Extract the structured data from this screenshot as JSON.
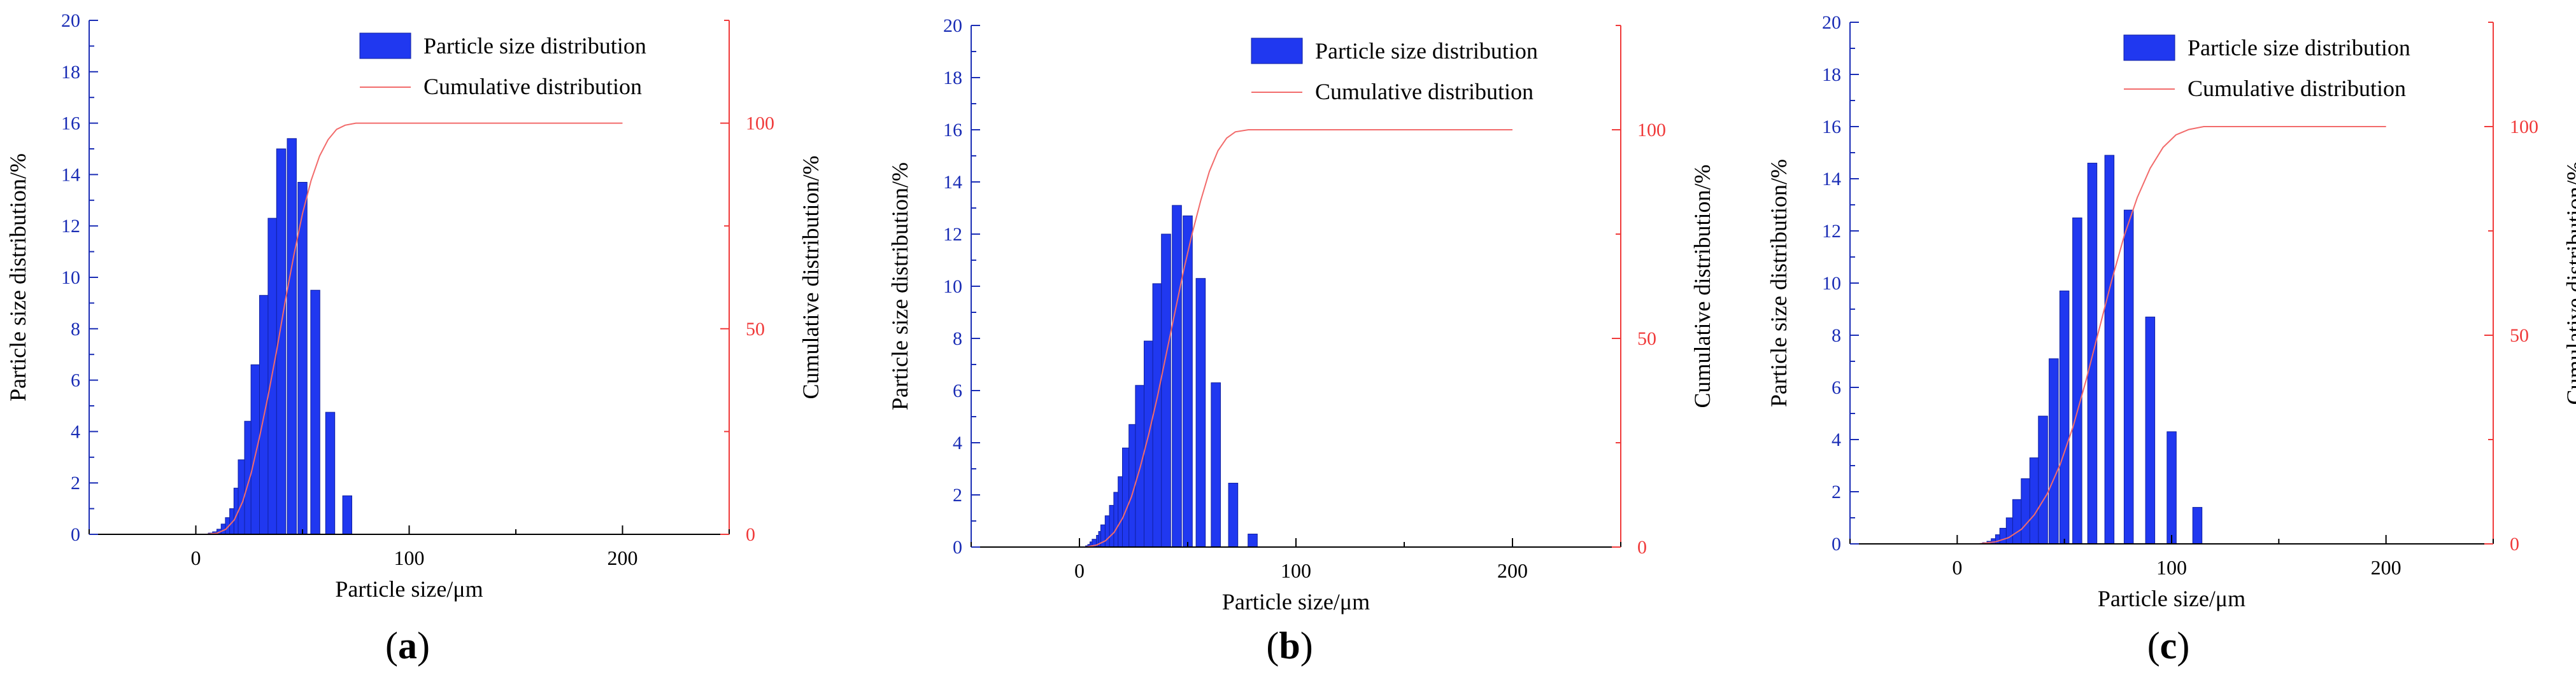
{
  "colors": {
    "bar": "#2038F0",
    "bar_edge": "#1020A0",
    "left_axis": "#1A2DB5",
    "right_axis": "#F03A3A",
    "curve": "#F26B6B",
    "axis": "#000000"
  },
  "chart_data": [
    {
      "panel_label": "a",
      "type": "bar",
      "title": "",
      "xlabel": "Particle size/μm",
      "ylabel": "Particle size distribution/%",
      "y2label": "Cumulative distribution/%",
      "xlim": [
        -50,
        250
      ],
      "ylim": [
        0,
        20
      ],
      "y2lim": [
        0,
        125
      ],
      "xticks": [
        0,
        100,
        200
      ],
      "yticks": [
        0,
        2,
        4,
        6,
        8,
        10,
        12,
        14,
        16,
        18,
        20
      ],
      "y2ticks": [
        0,
        50,
        100
      ],
      "legend": [
        "Particle size distribution",
        "Cumulative distribution"
      ],
      "bar_width": 4.3,
      "x": [
        8,
        10,
        12,
        14,
        16,
        18,
        20,
        22,
        25,
        28,
        32,
        36,
        40,
        45,
        50,
        56,
        63,
        71
      ],
      "values": [
        0.05,
        0.1,
        0.2,
        0.4,
        0.65,
        1.0,
        1.8,
        2.9,
        4.4,
        6.6,
        9.3,
        12.3,
        15.0,
        15.4,
        13.7,
        9.5,
        4.75,
        1.5
      ],
      "cumulative_x": [
        5,
        10,
        14,
        18,
        22,
        26,
        30,
        34,
        38,
        42,
        46,
        50,
        54,
        58,
        62,
        66,
        70,
        75,
        80,
        100,
        200
      ],
      "cumulative_y": [
        0,
        0.3,
        1.2,
        3.5,
        8,
        15,
        24,
        34,
        45,
        57,
        68,
        78,
        86,
        92,
        96,
        98.5,
        99.5,
        100,
        100,
        100,
        100
      ]
    },
    {
      "panel_label": "b",
      "type": "bar",
      "title": "",
      "xlabel": "Particle size/μm",
      "ylabel": "Particle size distribution/%",
      "y2label": "Cumulative distribution/%",
      "xlim": [
        -50,
        250
      ],
      "ylim": [
        0,
        20
      ],
      "y2lim": [
        0,
        125
      ],
      "xticks": [
        0,
        100,
        200
      ],
      "yticks": [
        0,
        2,
        4,
        6,
        8,
        10,
        12,
        14,
        16,
        18,
        20
      ],
      "y2ticks": [
        0,
        50,
        100
      ],
      "legend": [
        "Particle size distribution",
        "Cumulative distribution"
      ],
      "bar_width": 4.3,
      "x": [
        5,
        6,
        7,
        8,
        10,
        11,
        12,
        14,
        16,
        18,
        20,
        22,
        25,
        28,
        32,
        36,
        40,
        45,
        50,
        56,
        63,
        71,
        80
      ],
      "values": [
        0.05,
        0.1,
        0.2,
        0.3,
        0.45,
        0.6,
        0.85,
        1.2,
        1.6,
        2.1,
        2.7,
        3.8,
        4.7,
        6.2,
        7.9,
        10.1,
        12.0,
        13.1,
        12.7,
        10.3,
        6.3,
        2.45,
        0.5
      ],
      "cumulative_x": [
        3,
        8,
        12,
        16,
        20,
        24,
        28,
        32,
        36,
        40,
        44,
        48,
        52,
        56,
        60,
        64,
        68,
        72,
        78,
        90,
        200
      ],
      "cumulative_y": [
        0,
        0.5,
        1.5,
        3.5,
        7,
        12,
        19,
        27,
        36,
        46,
        56,
        66,
        75,
        83,
        90,
        95,
        98,
        99.5,
        100,
        100,
        100
      ]
    },
    {
      "panel_label": "c",
      "type": "bar",
      "title": "",
      "xlabel": "Particle size/μm",
      "ylabel": "Particle size distribution/%",
      "y2label": "Cumulative distribution/%",
      "xlim": [
        -50,
        250
      ],
      "ylim": [
        0,
        20
      ],
      "y2lim": [
        0,
        125
      ],
      "xticks": [
        0,
        100,
        200
      ],
      "yticks": [
        0,
        2,
        4,
        6,
        8,
        10,
        12,
        14,
        16,
        18,
        20
      ],
      "y2ticks": [
        0,
        50,
        100
      ],
      "legend": [
        "Particle size distribution",
        "Cumulative distribution"
      ],
      "bar_width": 4.3,
      "x": [
        14,
        16,
        18,
        20,
        22,
        25,
        28,
        32,
        36,
        40,
        45,
        50,
        56,
        63,
        71,
        80,
        90,
        100,
        112
      ],
      "values": [
        0.05,
        0.1,
        0.2,
        0.35,
        0.6,
        1.0,
        1.7,
        2.5,
        3.3,
        4.9,
        7.1,
        9.7,
        12.5,
        14.6,
        14.9,
        12.8,
        8.7,
        4.3,
        1.4
      ],
      "cumulative_x": [
        10,
        18,
        24,
        30,
        36,
        42,
        48,
        54,
        60,
        66,
        72,
        78,
        84,
        90,
        96,
        102,
        108,
        115,
        130,
        160,
        200
      ],
      "cumulative_y": [
        0,
        0.5,
        1.5,
        3.5,
        7,
        12,
        19,
        28,
        39,
        51,
        63,
        74,
        83,
        90,
        95,
        98,
        99.3,
        100,
        100,
        100,
        100
      ]
    }
  ]
}
